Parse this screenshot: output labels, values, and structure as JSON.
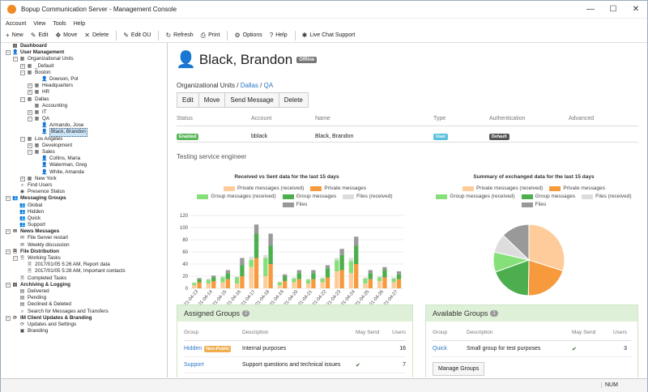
{
  "window": {
    "title": "Bopup Communication Server - Management Console"
  },
  "menu": [
    "Account",
    "View",
    "Tools",
    "Help"
  ],
  "toolbar": [
    {
      "icon": "plus-icon",
      "glyph": "+",
      "label": "New"
    },
    {
      "icon": "pencil-icon",
      "glyph": "✎",
      "label": "Edit"
    },
    {
      "icon": "move-icon",
      "glyph": "✥",
      "label": "Move"
    },
    {
      "icon": "delete-icon",
      "glyph": "✕",
      "label": "Delete"
    },
    {
      "icon": "edit-ou-icon",
      "glyph": "✎",
      "label": "Edit OU"
    },
    {
      "icon": "refresh-icon",
      "glyph": "↻",
      "label": "Refresh"
    },
    {
      "icon": "print-icon",
      "glyph": "⎙",
      "label": "Print"
    },
    {
      "icon": "gear-icon",
      "glyph": "⚙",
      "label": "Options"
    },
    {
      "icon": "help-icon",
      "glyph": "?",
      "label": "Help"
    },
    {
      "icon": "chat-icon",
      "glyph": "✱",
      "label": "Live Chat Support"
    }
  ],
  "tree": [
    {
      "label": "Dashboard",
      "level": 0,
      "exp": "",
      "icon": "▤",
      "bold": true
    },
    {
      "label": "User Management",
      "level": 0,
      "exp": "−",
      "icon": "👤",
      "bold": true
    },
    {
      "label": "Organizational Units",
      "level": 1,
      "exp": "−",
      "icon": "▦"
    },
    {
      "label": "_Default",
      "level": 2,
      "exp": "+",
      "icon": "▦"
    },
    {
      "label": "Boston",
      "level": 2,
      "exp": "−",
      "icon": "▦"
    },
    {
      "label": "Dowson, Pol",
      "level": 4,
      "exp": "",
      "icon": "👤"
    },
    {
      "label": "Headquarters",
      "level": 3,
      "exp": "+",
      "icon": "▦"
    },
    {
      "label": "HR",
      "level": 3,
      "exp": "+",
      "icon": "▦"
    },
    {
      "label": "Dallas",
      "level": 2,
      "exp": "−",
      "icon": "▦"
    },
    {
      "label": "Accounting",
      "level": 3,
      "exp": "",
      "icon": "▦"
    },
    {
      "label": "IT",
      "level": 3,
      "exp": "+",
      "icon": "▦"
    },
    {
      "label": "QA",
      "level": 3,
      "exp": "−",
      "icon": "▦"
    },
    {
      "label": "Armando, Jose",
      "level": 4,
      "exp": "",
      "icon": "👤"
    },
    {
      "label": "Black, Brandon",
      "level": 4,
      "exp": "",
      "icon": "👤",
      "selected": true
    },
    {
      "label": "Los Angeles",
      "level": 2,
      "exp": "−",
      "icon": "▦"
    },
    {
      "label": "Development",
      "level": 3,
      "exp": "+",
      "icon": "▦"
    },
    {
      "label": "Sales",
      "level": 3,
      "exp": "−",
      "icon": "▦"
    },
    {
      "label": "Collins, Maria",
      "level": 4,
      "exp": "",
      "icon": "👤"
    },
    {
      "label": "Waterman, Greg",
      "level": 4,
      "exp": "",
      "icon": "👤"
    },
    {
      "label": "White, Amanda",
      "level": 4,
      "exp": "",
      "icon": "👤"
    },
    {
      "label": "New York",
      "level": 2,
      "exp": "+",
      "icon": "▦"
    },
    {
      "label": "Find Users",
      "level": 1,
      "exp": "",
      "icon": "⌕"
    },
    {
      "label": "Presence Status",
      "level": 1,
      "exp": "",
      "icon": "◉"
    },
    {
      "label": "Messaging Groups",
      "level": 0,
      "exp": "−",
      "icon": "👥",
      "bold": true
    },
    {
      "label": "Global",
      "level": 1,
      "exp": "",
      "icon": "👥"
    },
    {
      "label": "Hidden",
      "level": 1,
      "exp": "",
      "icon": "👥"
    },
    {
      "label": "Quick",
      "level": 1,
      "exp": "",
      "icon": "👥"
    },
    {
      "label": "Support",
      "level": 1,
      "exp": "",
      "icon": "👥"
    },
    {
      "label": "News Messages",
      "level": 0,
      "exp": "−",
      "icon": "✉",
      "bold": true
    },
    {
      "label": "File Server restart",
      "level": 1,
      "exp": "",
      "icon": "✉"
    },
    {
      "label": "Weekly discussion",
      "level": 1,
      "exp": "",
      "icon": "✉"
    },
    {
      "label": "File Distribution",
      "level": 0,
      "exp": "−",
      "icon": "🗎",
      "bold": true
    },
    {
      "label": "Working Tasks",
      "level": 1,
      "exp": "−",
      "icon": "🗎"
    },
    {
      "label": "2017/01/05 5:26 AM, Report data",
      "level": 2,
      "exp": "",
      "icon": "🗎"
    },
    {
      "label": "2017/01/05 5:28 AM, Important contacts",
      "level": 2,
      "exp": "",
      "icon": "🗎"
    },
    {
      "label": "Completed Tasks",
      "level": 1,
      "exp": "",
      "icon": "🗎"
    },
    {
      "label": "Archiving & Logging",
      "level": 0,
      "exp": "−",
      "icon": "▤",
      "bold": true
    },
    {
      "label": "Delivered",
      "level": 1,
      "exp": "",
      "icon": "▤"
    },
    {
      "label": "Pending",
      "level": 1,
      "exp": "",
      "icon": "▤"
    },
    {
      "label": "Declined & Deleted",
      "level": 1,
      "exp": "",
      "icon": "▤"
    },
    {
      "label": "Search for Messages and Transfers",
      "level": 1,
      "exp": "",
      "icon": "⌕"
    },
    {
      "label": "IM Client Updates & Branding",
      "level": 0,
      "exp": "−",
      "icon": "⟳",
      "bold": true
    },
    {
      "label": "Updates and Settings",
      "level": 1,
      "exp": "",
      "icon": "⟳"
    },
    {
      "label": "Branding",
      "level": 1,
      "exp": "",
      "icon": "▣"
    }
  ],
  "user": {
    "name": "Black, Brandon",
    "status_badge": "Offline",
    "ou_prefix": "Organizational Units /",
    "ou_path": [
      "Dallas",
      "QA"
    ],
    "actions": [
      "Edit",
      "Move",
      "Send Message",
      "Delete"
    ],
    "headers": [
      "Status",
      "Account",
      "Name",
      "Type",
      "Authentication",
      "Advanced"
    ],
    "status": "Enabled",
    "account": "bblack",
    "full_name": "Black, Brandon",
    "type": "User",
    "authentication": "Default",
    "description": "Testing service engineer"
  },
  "colors": {
    "private_received": "#fdcc9a",
    "private_messages": "#f79a3e",
    "group_received": "#86e07a",
    "group_messages": "#4cae4c",
    "files_received": "#dddddd",
    "files": "#999999"
  },
  "chart_data": [
    {
      "type": "bar",
      "title": "Received vs Sent data for the last 15 days",
      "categories": [
        "2021-04-13",
        "2021-04-14",
        "2021-04-15",
        "2021-04-16",
        "2021-04-17",
        "2021-04-18",
        "2021-04-19",
        "2021-04-20",
        "2021-04-21",
        "2021-04-22",
        "2021-04-23",
        "2021-04-24",
        "2021-04-25",
        "2021-04-26",
        "2021-04-27"
      ],
      "ylim": [
        0,
        120
      ],
      "yticks": [
        0,
        20,
        40,
        60,
        80,
        100,
        120
      ],
      "legend": "top",
      "groups": [
        {
          "side": "received",
          "series": [
            {
              "name": "Private messages (received)",
              "values": [
                5,
                8,
                10,
                8,
                35,
                20,
                5,
                10,
                8,
                10,
                28,
                25,
                8,
                12,
                10
              ]
            },
            {
              "name": "Group messages (received)",
              "values": [
                4,
                6,
                8,
                10,
                12,
                30,
                5,
                6,
                6,
                6,
                18,
                20,
                8,
                6,
                6
              ]
            },
            {
              "name": "Files (received)",
              "values": [
                1,
                2,
                2,
                2,
                5,
                5,
                1,
                2,
                2,
                2,
                4,
                5,
                2,
                2,
                2
              ]
            }
          ]
        },
        {
          "side": "sent",
          "series": [
            {
              "name": "Private messages",
              "values": [
                10,
                12,
                15,
                20,
                50,
                40,
                12,
                15,
                15,
                18,
                30,
                40,
                15,
                18,
                15
              ]
            },
            {
              "name": "Group messages",
              "values": [
                5,
                6,
                10,
                18,
                40,
                30,
                8,
                10,
                10,
                15,
                25,
                30,
                10,
                12,
                8
              ]
            },
            {
              "name": "Files",
              "values": [
                2,
                3,
                5,
                12,
                15,
                20,
                3,
                5,
                5,
                5,
                10,
                15,
                5,
                5,
                5
              ]
            }
          ]
        }
      ]
    },
    {
      "type": "pie",
      "title": "Summary of exchanged data for the last 15 days",
      "legend": "top",
      "labels": [
        "Private messages (received)",
        "Private messages",
        "Group messages (received)",
        "Group messages",
        "Files (received)",
        "Files"
      ],
      "values": [
        0.28,
        0.19,
        0.085,
        0.18,
        0.08,
        0.12
      ]
    }
  ],
  "assigned_groups": {
    "title": "Assigned Groups",
    "count": "2",
    "headers": [
      "Group",
      "Description",
      "May Send",
      "Users"
    ],
    "rows": [
      {
        "group": "Hidden",
        "tag": "Non-Public",
        "description": "Internal purposes",
        "may_send": "",
        "users": "16"
      },
      {
        "group": "Support",
        "tag": "",
        "description": "Support questions and technical issues",
        "may_send": "✔",
        "users": "7"
      }
    ]
  },
  "available_groups": {
    "title": "Available Groups",
    "count": "1",
    "headers": [
      "Group",
      "Description",
      "May Send",
      "Users"
    ],
    "rows": [
      {
        "group": "Quick",
        "description": "Small group for test purposes",
        "may_send": "✔",
        "users": "3"
      }
    ],
    "manage_button": "Manage Groups"
  },
  "status_bar": {
    "num": "NUM"
  }
}
